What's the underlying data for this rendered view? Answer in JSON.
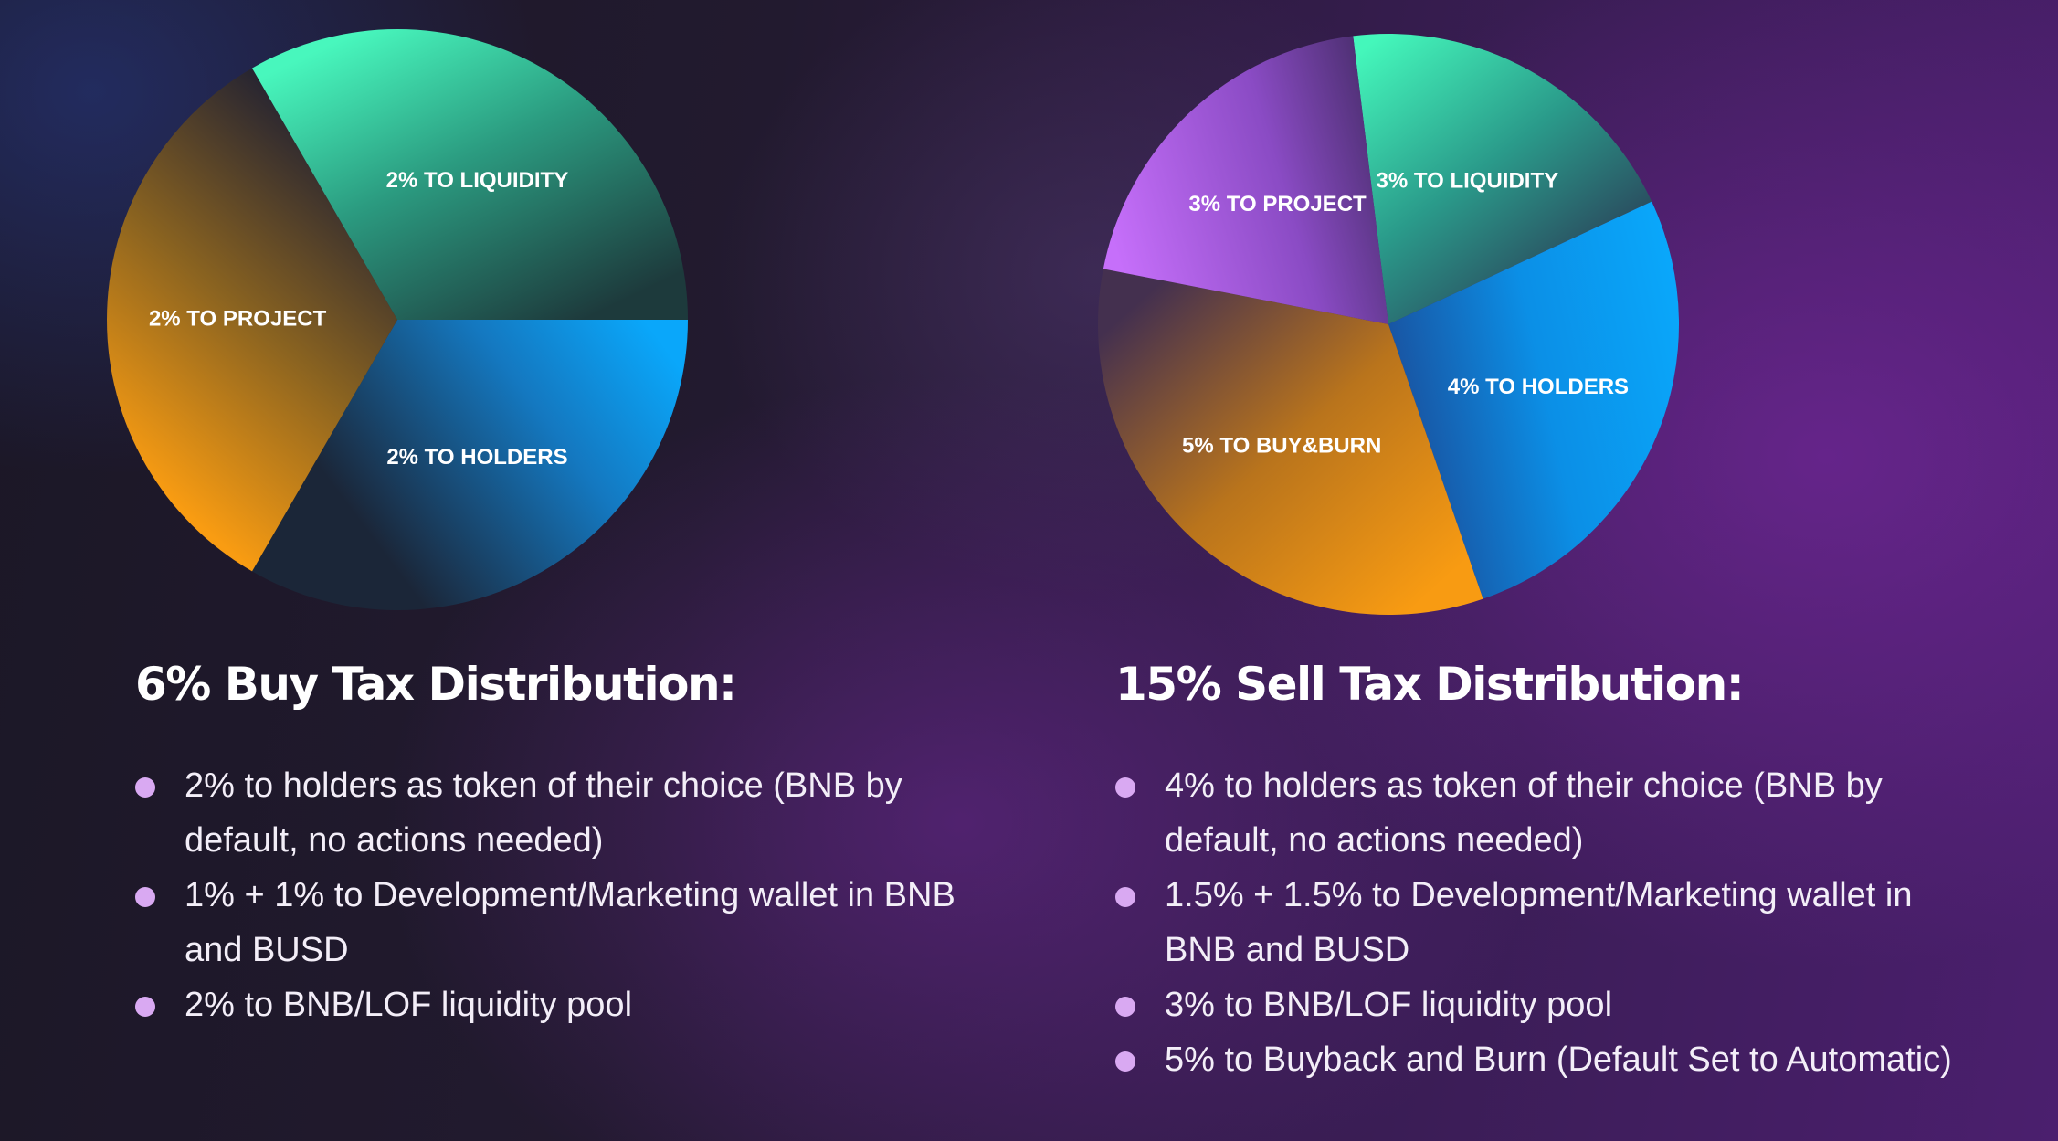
{
  "chart_data": [
    {
      "type": "pie",
      "title": "6% Buy Tax Distribution:",
      "slices": [
        {
          "label": "2% TO LIQUIDITY",
          "value": 2,
          "start_angle_deg": 0,
          "sweep_dir": -1
        },
        {
          "label": "2% TO PROJECT",
          "value": 2,
          "start_angle_deg": 120,
          "sweep_dir": -1
        },
        {
          "label": "2% TO HOLDERS",
          "value": 2,
          "start_angle_deg": 240,
          "sweep_dir": -1
        }
      ]
    },
    {
      "type": "pie",
      "title": "15% Sell Tax Distribution:",
      "slices": [
        {
          "label": "3% TO LIQUIDITY",
          "value": 3
        },
        {
          "label": "4% TO HOLDERS",
          "value": 4
        },
        {
          "label": "5% TO BUY&BURN",
          "value": 5
        },
        {
          "label": "3% TO PROJECT",
          "value": 3
        }
      ]
    }
  ],
  "sections": [
    {
      "title": "6% Buy Tax Distribution:",
      "items": [
        "2% to holders as token of their choice (BNB by default, no actions needed)",
        "1% + 1% to Development/Marketing wallet in BNB and BUSD",
        "2% to BNB/LOF liquidity pool"
      ]
    },
    {
      "title": "15% Sell Tax Distribution:",
      "items": [
        "4% to holders as token of their choice (BNB by default, no actions needed)",
        "1.5% + 1.5% to Development/Marketing wallet in BNB and BUSD",
        "3% to BNB/LOF liquidity pool",
        "5% to Buyback and Burn (Default Set to Automatic)"
      ]
    }
  ],
  "colors": {
    "liquidity": "#45f5bb",
    "holders": "#0aa3f7",
    "project_buy": "#f79a12",
    "project_sell": "#c06df7",
    "buyburn": "#f79a12",
    "dark_edge": "#1c2a3a",
    "bullet_dot": "#d9a9f2"
  }
}
